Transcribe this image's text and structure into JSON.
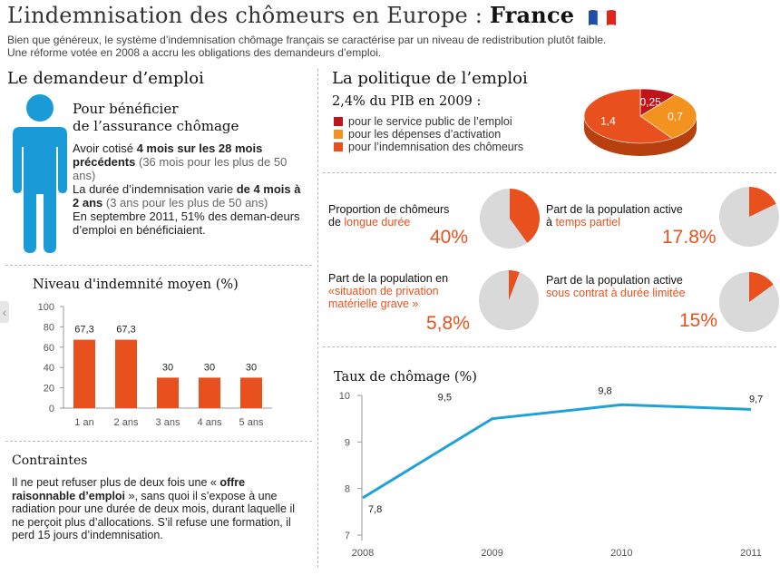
{
  "header": {
    "title_prefix": "L’indemnisation des chômeurs en Europe :",
    "title_country": "France",
    "intro_line1": "Bien que généreux, le système d’indemnisation chômage français se caractérise par un niveau de redistribution plutôt faible.",
    "intro_line2": "Une réforme votée en 2008 a accru les obligations des demandeurs d’emploi."
  },
  "left": {
    "heading": "Le demandeur d’emploi",
    "subheading_1": "Pour bénéficier",
    "subheading_2": "de l’assurance chômage",
    "p1_a": "Avoir cotisé",
    "p1_b": "4 mois sur les 28 mois",
    "p1_c": "précédents",
    "p1_d": "(36 mois pour les plus de 50 ans)",
    "p2_a": "La durée d’indemnisation varie",
    "p2_b": "de 4 mois à 2 ans",
    "p2_c": "(3 ans pour les plus de 50 ans)",
    "p3": "En septembre 2011, 51% des deman-deurs d’emploi en bénéficiaient.",
    "constraints_heading": "Contraintes",
    "constraints_a": "Il ne peut refuser plus de deux fois une «",
    "constraints_b": "offre raisonnable d’emploi",
    "constraints_c": "», sans quoi il s’expose à une radiation pour une durée de deux mois, durant laquelle il ne perçoit plus d’allocations. S’il refuse une formation, il perd 15 jours d’indemnisation."
  },
  "right": {
    "heading": "La politique de l’emploi",
    "gdp_label": "2,4% du PIB en 2009 :",
    "legend": [
      {
        "label": "pour le service public de l’emploi",
        "color": "#c0141b"
      },
      {
        "label": "pour les dépenses d’activation",
        "color": "#f4921f"
      },
      {
        "label": "pour l’indemnisation des chômeurs",
        "color": "#e8511e"
      }
    ],
    "stats": [
      {
        "label_a": "Proportion de chômeurs",
        "label_b": "de",
        "label_c": "longue durée",
        "value": "40%"
      },
      {
        "label_a": "Part de la population active",
        "label_b": "à",
        "label_c": "temps partiel",
        "value": "17.8%"
      },
      {
        "label_a": "Part de la population en",
        "label_b": "",
        "label_c": "«situation de privation matérielle grave »",
        "value": "5,8%"
      },
      {
        "label_a": "Part de la population active",
        "label_b": "",
        "label_c": "sous contrat à durée limitée",
        "value": "15%"
      }
    ]
  },
  "colors": {
    "accent": "#e8511e",
    "dark_red": "#c0141b",
    "light_orange": "#f4921f",
    "grey": "#d9d9d9",
    "line": "#1fa3d6",
    "person": "#1a9ad6"
  },
  "chart_data": [
    {
      "type": "pie",
      "title": "2,4% du PIB en 2009 :",
      "categories": [
        "pour le service public de l’emploi",
        "pour les dépenses d’activation",
        "pour l’indemnisation des chômeurs"
      ],
      "values": [
        0.25,
        0.7,
        1.4
      ],
      "value_labels": [
        "0,25",
        "0,7",
        "1,4"
      ]
    },
    {
      "type": "pie",
      "title": "Proportion de chômeurs de longue durée",
      "values": [
        40,
        60
      ]
    },
    {
      "type": "pie",
      "title": "Part de la population active à temps partiel",
      "values": [
        17.8,
        82.2
      ]
    },
    {
      "type": "pie",
      "title": "Part de la population en «situation de privation matérielle grave »",
      "values": [
        5.8,
        94.2
      ]
    },
    {
      "type": "pie",
      "title": "Part de la population active sous contrat à durée limitée",
      "values": [
        15,
        85
      ]
    },
    {
      "type": "bar",
      "title": "Niveau d'indemnité moyen (%)",
      "categories": [
        "1 an",
        "2 ans",
        "3 ans",
        "4 ans",
        "5 ans"
      ],
      "values": [
        67.3,
        67.3,
        30,
        30,
        30
      ],
      "value_labels": [
        "67,3",
        "67,3",
        "30",
        "30",
        "30"
      ],
      "ylim": [
        0,
        100
      ],
      "yticks": [
        0,
        20,
        40,
        60,
        80,
        100
      ]
    },
    {
      "type": "line",
      "title": "Taux de chômage (%)",
      "x": [
        "2008",
        "2009",
        "2010",
        "2011"
      ],
      "values": [
        7.8,
        9.5,
        9.8,
        9.7
      ],
      "value_labels": [
        "7,8",
        "9,5",
        "9,8",
        "9,7"
      ],
      "ylim": [
        7,
        10
      ],
      "yticks": [
        7,
        8,
        9,
        10
      ]
    }
  ]
}
